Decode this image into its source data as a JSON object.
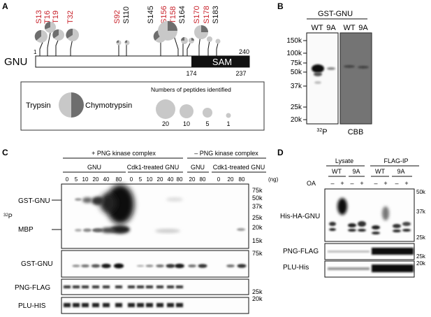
{
  "panels": {
    "A": {
      "letter": "A",
      "sites": [
        {
          "label": "S13",
          "color": "#c8232c"
        },
        {
          "label": "T16",
          "color": "#c8232c"
        },
        {
          "label": "T19",
          "color": "#c8232c"
        },
        {
          "label": "T32",
          "color": "#c8232c"
        },
        {
          "label": "S92",
          "color": "#c8232c"
        },
        {
          "label": "S110",
          "color": "#111111"
        },
        {
          "label": "S145",
          "color": "#111111"
        },
        {
          "label": "S156",
          "color": "#c8232c"
        },
        {
          "label": "T158",
          "color": "#c8232c"
        },
        {
          "label": "S164",
          "color": "#111111"
        },
        {
          "label": "S170",
          "color": "#c8232c"
        },
        {
          "label": "S178",
          "color": "#c8232c"
        },
        {
          "label": "S183",
          "color": "#111111"
        }
      ],
      "protein": "GNU",
      "domain": "SAM",
      "pos_start": "1",
      "pos_end": "240",
      "sam_start": "174",
      "sam_end": "237",
      "legend": {
        "trypsin": "Trypsin",
        "chymotrypsin": "Chymotrypsin",
        "peptides_title": "Numbers of peptides identified",
        "sizes": [
          "20",
          "10",
          "5",
          "1"
        ]
      }
    },
    "B": {
      "letter": "B",
      "title": "GST-GNU",
      "lanes": [
        "WT",
        "9A",
        "WT",
        "9A"
      ],
      "markers": [
        "150k",
        "100k",
        "75k",
        "50k",
        "37k",
        "25k",
        "20k"
      ],
      "bottom_left": "32P",
      "bottom_right": "CBB"
    },
    "C": {
      "letter": "C",
      "plus_header": "+ PNG kinase complex",
      "minus_header": "– PNG kinase complex",
      "group1": "GNU",
      "group2": "Cdk1-treated GNU",
      "group3": "GNU",
      "group4": "Cdk1-treated GNU",
      "amounts": [
        "0",
        "5",
        "10",
        "20",
        "40",
        "80",
        "0",
        "5",
        "10",
        "20",
        "40",
        "80",
        "20",
        "80",
        "0",
        "20",
        "80"
      ],
      "unit": "(ng)",
      "p32": "32P",
      "row_labels": {
        "gst": "GST-GNU",
        "mbp": "MBP",
        "gst2": "GST-GNU",
        "png": "PNG-FLAG",
        "plu": "PLU-HIS"
      },
      "markers_top": [
        "75k",
        "50k",
        "37k",
        "25k",
        "20k",
        "15k"
      ],
      "marker_gst": "75k",
      "marker_png": "25k",
      "marker_plu": "20k"
    },
    "D": {
      "letter": "D",
      "lysate": "Lysate",
      "flagip": "FLAG-IP",
      "genotypes": [
        "WT",
        "9A",
        "WT",
        "9A"
      ],
      "oa_label": "OA",
      "oa_signs": [
        "–",
        "+",
        "–",
        "+",
        "–",
        "+",
        "–",
        "+"
      ],
      "row_labels": {
        "ha": "His-HA-GNU",
        "png": "PNG-FLAG",
        "plu": "PLU-His"
      },
      "markers_ha": [
        "50k",
        "37k",
        "25k"
      ],
      "marker_png": "25k",
      "marker_plu": "20k"
    }
  }
}
